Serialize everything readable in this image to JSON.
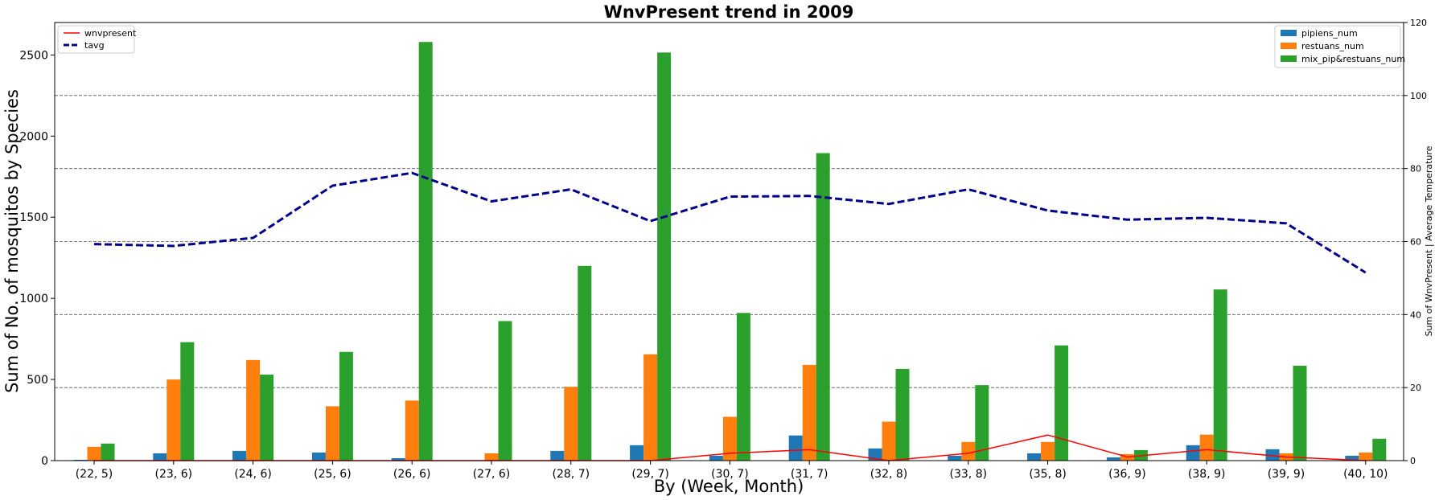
{
  "chart_data": {
    "type": "bar",
    "title": "WnvPresent trend in 2009",
    "xlabel": "By (Week, Month)",
    "ylabel": "Sum of No. of mosquitos by Species",
    "ylabel_right": "Sum of WnvPresent | Average Temperature",
    "categories": [
      "(22, 5)",
      "(23, 6)",
      "(24, 6)",
      "(25, 6)",
      "(26, 6)",
      "(27, 6)",
      "(28, 7)",
      "(29, 7)",
      "(30, 7)",
      "(31, 7)",
      "(32, 8)",
      "(33, 8)",
      "(35, 8)",
      "(36, 9)",
      "(38, 9)",
      "(39, 9)",
      "(40, 10)"
    ],
    "ylim": [
      0,
      2700
    ],
    "yticks": [
      0,
      500,
      1000,
      1500,
      2000,
      2500
    ],
    "ylim_right": [
      0,
      120
    ],
    "yticks_right": [
      0,
      20,
      40,
      60,
      80,
      100,
      120
    ],
    "grid": "horizontal dashed (right axis)",
    "bar_series": [
      {
        "name": "pipiens_num",
        "color": "#1f77b4",
        "values": [
          5,
          45,
          60,
          50,
          15,
          2,
          60,
          95,
          30,
          155,
          75,
          30,
          45,
          20,
          95,
          70,
          30
        ]
      },
      {
        "name": "restuans_num",
        "color": "#ff7f0e",
        "values": [
          85,
          500,
          620,
          335,
          370,
          45,
          455,
          655,
          270,
          590,
          240,
          115,
          115,
          40,
          160,
          45,
          50
        ]
      },
      {
        "name": "mix_pip&restuans_num",
        "color": "#2ca02c",
        "values": [
          105,
          730,
          530,
          670,
          2580,
          860,
          1200,
          2515,
          910,
          1895,
          565,
          465,
          710,
          65,
          1055,
          585,
          135
        ]
      }
    ],
    "line_series": [
      {
        "name": "wnvpresent",
        "color": "#ff0000",
        "style": "solid",
        "axis": "right",
        "values": [
          0,
          0,
          0,
          0,
          0,
          0,
          0,
          0,
          2,
          3,
          0,
          2,
          7,
          1,
          3,
          1,
          0
        ]
      },
      {
        "name": "tavg",
        "color": "#00008b",
        "style": "dashed",
        "axis": "right",
        "values": [
          59.3,
          58.8,
          61.0,
          75.3,
          78.8,
          71.0,
          74.3,
          65.6,
          72.3,
          72.5,
          70.3,
          74.3,
          68.5,
          66.0,
          66.5,
          65.0,
          51.5
        ]
      }
    ],
    "legend_left": {
      "placement": "top-left",
      "items": [
        "wnvpresent",
        "tavg"
      ]
    },
    "legend_right": {
      "placement": "top-right",
      "items": [
        "pipiens_num",
        "restuans_num",
        "mix_pip&restuans_num"
      ]
    }
  }
}
